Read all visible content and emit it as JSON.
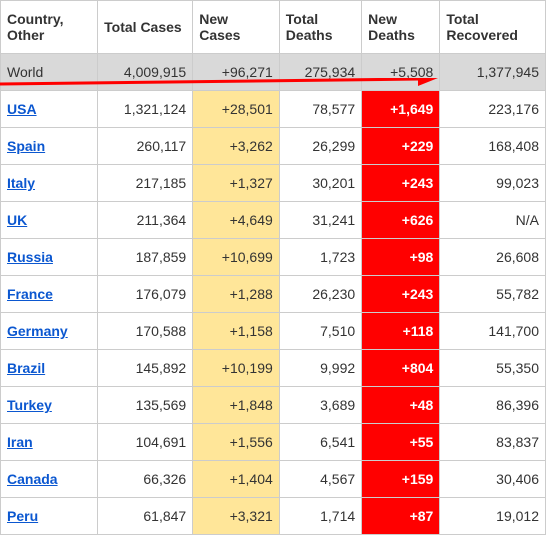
{
  "headers": {
    "country": "Country, Other",
    "total_cases": "Total Cases",
    "new_cases": "New Cases",
    "total_deaths": "Total Deaths",
    "new_deaths": "New Deaths",
    "total_recovered": "Total Recovered"
  },
  "world": {
    "name": "World",
    "total_cases": "4,009,915",
    "new_cases": "+96,271",
    "total_deaths": "275,934",
    "new_deaths": "+5,508",
    "total_recovered": "1,377,945"
  },
  "rows": [
    {
      "name": "USA",
      "total_cases": "1,321,124",
      "new_cases": "+28,501",
      "total_deaths": "78,577",
      "new_deaths": "+1,649",
      "total_recovered": "223,176"
    },
    {
      "name": "Spain",
      "total_cases": "260,117",
      "new_cases": "+3,262",
      "total_deaths": "26,299",
      "new_deaths": "+229",
      "total_recovered": "168,408"
    },
    {
      "name": "Italy",
      "total_cases": "217,185",
      "new_cases": "+1,327",
      "total_deaths": "30,201",
      "new_deaths": "+243",
      "total_recovered": "99,023"
    },
    {
      "name": "UK",
      "total_cases": "211,364",
      "new_cases": "+4,649",
      "total_deaths": "31,241",
      "new_deaths": "+626",
      "total_recovered": "N/A"
    },
    {
      "name": "Russia",
      "total_cases": "187,859",
      "new_cases": "+10,699",
      "total_deaths": "1,723",
      "new_deaths": "+98",
      "total_recovered": "26,608"
    },
    {
      "name": "France",
      "total_cases": "176,079",
      "new_cases": "+1,288",
      "total_deaths": "26,230",
      "new_deaths": "+243",
      "total_recovered": "55,782"
    },
    {
      "name": "Germany",
      "total_cases": "170,588",
      "new_cases": "+1,158",
      "total_deaths": "7,510",
      "new_deaths": "+118",
      "total_recovered": "141,700"
    },
    {
      "name": "Brazil",
      "total_cases": "145,892",
      "new_cases": "+10,199",
      "total_deaths": "9,992",
      "new_deaths": "+804",
      "total_recovered": "55,350"
    },
    {
      "name": "Turkey",
      "total_cases": "135,569",
      "new_cases": "+1,848",
      "total_deaths": "3,689",
      "new_deaths": "+48",
      "total_recovered": "86,396"
    },
    {
      "name": "Iran",
      "total_cases": "104,691",
      "new_cases": "+1,556",
      "total_deaths": "6,541",
      "new_deaths": "+55",
      "total_recovered": "83,837"
    },
    {
      "name": "Canada",
      "total_cases": "66,326",
      "new_cases": "+1,404",
      "total_deaths": "4,567",
      "new_deaths": "+159",
      "total_recovered": "30,406"
    },
    {
      "name": "Peru",
      "total_cases": "61,847",
      "new_cases": "+3,321",
      "total_deaths": "1,714",
      "new_deaths": "+87",
      "total_recovered": "19,012"
    }
  ],
  "colors": {
    "new_cases_bg": "#ffe699",
    "new_deaths_bg": "#ff0000",
    "link_color": "#0b57d0",
    "world_bg": "#d9d9d9",
    "arrow_color": "#ff0000"
  }
}
